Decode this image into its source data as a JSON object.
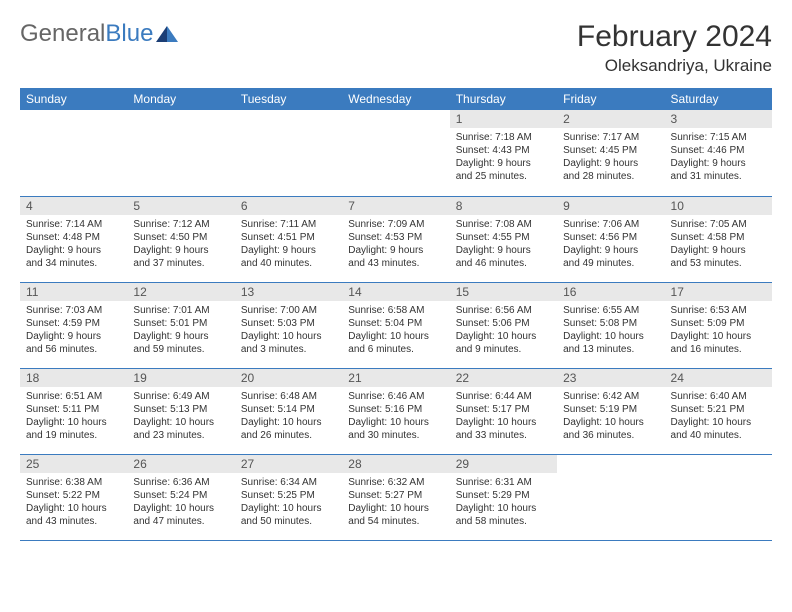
{
  "logo": {
    "text1": "General",
    "text2": "Blue"
  },
  "title": "February 2024",
  "location": "Oleksandriya, Ukraine",
  "colors": {
    "header_bg": "#3b7bbf",
    "header_text": "#ffffff",
    "daynum_bg": "#e8e8e8",
    "border": "#3b7bbf",
    "body_text": "#333333",
    "page_bg": "#ffffff"
  },
  "day_headers": [
    "Sunday",
    "Monday",
    "Tuesday",
    "Wednesday",
    "Thursday",
    "Friday",
    "Saturday"
  ],
  "weeks": [
    [
      {
        "empty": true
      },
      {
        "empty": true
      },
      {
        "empty": true
      },
      {
        "empty": true
      },
      {
        "num": "1",
        "sunrise": "Sunrise: 7:18 AM",
        "sunset": "Sunset: 4:43 PM",
        "day1": "Daylight: 9 hours",
        "day2": "and 25 minutes."
      },
      {
        "num": "2",
        "sunrise": "Sunrise: 7:17 AM",
        "sunset": "Sunset: 4:45 PM",
        "day1": "Daylight: 9 hours",
        "day2": "and 28 minutes."
      },
      {
        "num": "3",
        "sunrise": "Sunrise: 7:15 AM",
        "sunset": "Sunset: 4:46 PM",
        "day1": "Daylight: 9 hours",
        "day2": "and 31 minutes."
      }
    ],
    [
      {
        "num": "4",
        "sunrise": "Sunrise: 7:14 AM",
        "sunset": "Sunset: 4:48 PM",
        "day1": "Daylight: 9 hours",
        "day2": "and 34 minutes."
      },
      {
        "num": "5",
        "sunrise": "Sunrise: 7:12 AM",
        "sunset": "Sunset: 4:50 PM",
        "day1": "Daylight: 9 hours",
        "day2": "and 37 minutes."
      },
      {
        "num": "6",
        "sunrise": "Sunrise: 7:11 AM",
        "sunset": "Sunset: 4:51 PM",
        "day1": "Daylight: 9 hours",
        "day2": "and 40 minutes."
      },
      {
        "num": "7",
        "sunrise": "Sunrise: 7:09 AM",
        "sunset": "Sunset: 4:53 PM",
        "day1": "Daylight: 9 hours",
        "day2": "and 43 minutes."
      },
      {
        "num": "8",
        "sunrise": "Sunrise: 7:08 AM",
        "sunset": "Sunset: 4:55 PM",
        "day1": "Daylight: 9 hours",
        "day2": "and 46 minutes."
      },
      {
        "num": "9",
        "sunrise": "Sunrise: 7:06 AM",
        "sunset": "Sunset: 4:56 PM",
        "day1": "Daylight: 9 hours",
        "day2": "and 49 minutes."
      },
      {
        "num": "10",
        "sunrise": "Sunrise: 7:05 AM",
        "sunset": "Sunset: 4:58 PM",
        "day1": "Daylight: 9 hours",
        "day2": "and 53 minutes."
      }
    ],
    [
      {
        "num": "11",
        "sunrise": "Sunrise: 7:03 AM",
        "sunset": "Sunset: 4:59 PM",
        "day1": "Daylight: 9 hours",
        "day2": "and 56 minutes."
      },
      {
        "num": "12",
        "sunrise": "Sunrise: 7:01 AM",
        "sunset": "Sunset: 5:01 PM",
        "day1": "Daylight: 9 hours",
        "day2": "and 59 minutes."
      },
      {
        "num": "13",
        "sunrise": "Sunrise: 7:00 AM",
        "sunset": "Sunset: 5:03 PM",
        "day1": "Daylight: 10 hours",
        "day2": "and 3 minutes."
      },
      {
        "num": "14",
        "sunrise": "Sunrise: 6:58 AM",
        "sunset": "Sunset: 5:04 PM",
        "day1": "Daylight: 10 hours",
        "day2": "and 6 minutes."
      },
      {
        "num": "15",
        "sunrise": "Sunrise: 6:56 AM",
        "sunset": "Sunset: 5:06 PM",
        "day1": "Daylight: 10 hours",
        "day2": "and 9 minutes."
      },
      {
        "num": "16",
        "sunrise": "Sunrise: 6:55 AM",
        "sunset": "Sunset: 5:08 PM",
        "day1": "Daylight: 10 hours",
        "day2": "and 13 minutes."
      },
      {
        "num": "17",
        "sunrise": "Sunrise: 6:53 AM",
        "sunset": "Sunset: 5:09 PM",
        "day1": "Daylight: 10 hours",
        "day2": "and 16 minutes."
      }
    ],
    [
      {
        "num": "18",
        "sunrise": "Sunrise: 6:51 AM",
        "sunset": "Sunset: 5:11 PM",
        "day1": "Daylight: 10 hours",
        "day2": "and 19 minutes."
      },
      {
        "num": "19",
        "sunrise": "Sunrise: 6:49 AM",
        "sunset": "Sunset: 5:13 PM",
        "day1": "Daylight: 10 hours",
        "day2": "and 23 minutes."
      },
      {
        "num": "20",
        "sunrise": "Sunrise: 6:48 AM",
        "sunset": "Sunset: 5:14 PM",
        "day1": "Daylight: 10 hours",
        "day2": "and 26 minutes."
      },
      {
        "num": "21",
        "sunrise": "Sunrise: 6:46 AM",
        "sunset": "Sunset: 5:16 PM",
        "day1": "Daylight: 10 hours",
        "day2": "and 30 minutes."
      },
      {
        "num": "22",
        "sunrise": "Sunrise: 6:44 AM",
        "sunset": "Sunset: 5:17 PM",
        "day1": "Daylight: 10 hours",
        "day2": "and 33 minutes."
      },
      {
        "num": "23",
        "sunrise": "Sunrise: 6:42 AM",
        "sunset": "Sunset: 5:19 PM",
        "day1": "Daylight: 10 hours",
        "day2": "and 36 minutes."
      },
      {
        "num": "24",
        "sunrise": "Sunrise: 6:40 AM",
        "sunset": "Sunset: 5:21 PM",
        "day1": "Daylight: 10 hours",
        "day2": "and 40 minutes."
      }
    ],
    [
      {
        "num": "25",
        "sunrise": "Sunrise: 6:38 AM",
        "sunset": "Sunset: 5:22 PM",
        "day1": "Daylight: 10 hours",
        "day2": "and 43 minutes."
      },
      {
        "num": "26",
        "sunrise": "Sunrise: 6:36 AM",
        "sunset": "Sunset: 5:24 PM",
        "day1": "Daylight: 10 hours",
        "day2": "and 47 minutes."
      },
      {
        "num": "27",
        "sunrise": "Sunrise: 6:34 AM",
        "sunset": "Sunset: 5:25 PM",
        "day1": "Daylight: 10 hours",
        "day2": "and 50 minutes."
      },
      {
        "num": "28",
        "sunrise": "Sunrise: 6:32 AM",
        "sunset": "Sunset: 5:27 PM",
        "day1": "Daylight: 10 hours",
        "day2": "and 54 minutes."
      },
      {
        "num": "29",
        "sunrise": "Sunrise: 6:31 AM",
        "sunset": "Sunset: 5:29 PM",
        "day1": "Daylight: 10 hours",
        "day2": "and 58 minutes."
      },
      {
        "empty": true
      },
      {
        "empty": true
      }
    ]
  ]
}
